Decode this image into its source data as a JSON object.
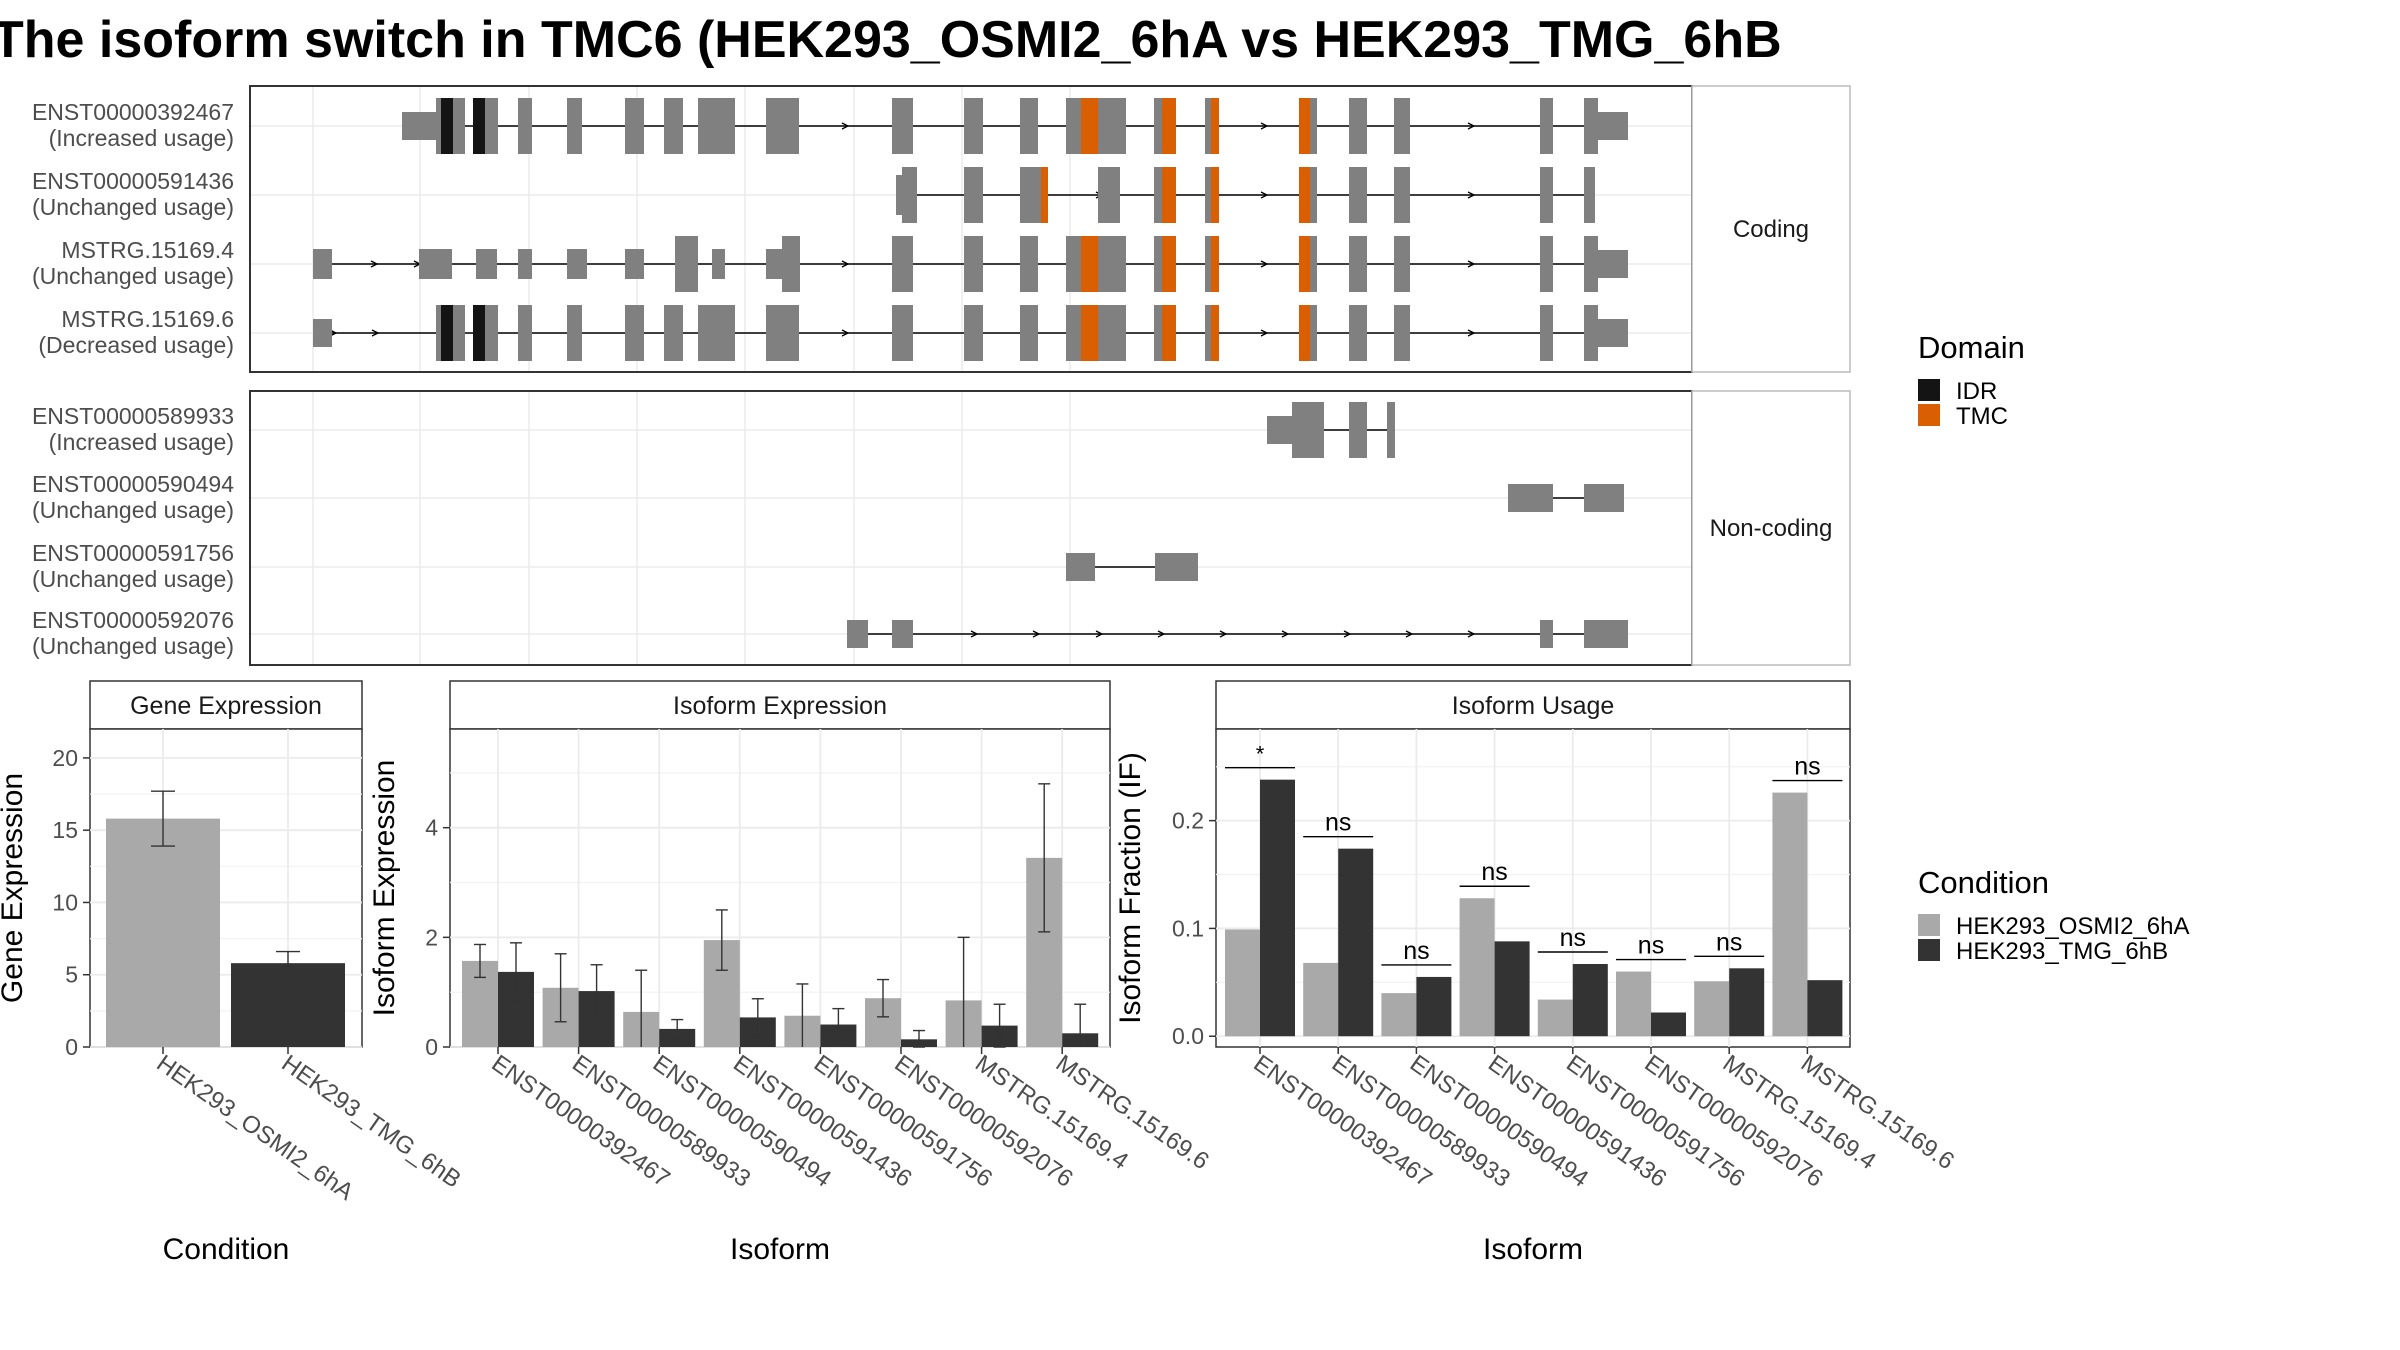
{
  "title": "The isoform switch in TMC6 (HEK293_OSMI2_6hA vs HEK293_TMG_6hB",
  "structure_panel": {
    "facets": [
      "Coding",
      "Non-coding"
    ],
    "transcripts": [
      {
        "id": "ENST00000392467",
        "usage": "(Increased usage)",
        "group": "Coding"
      },
      {
        "id": "ENST00000591436",
        "usage": "(Unchanged usage)",
        "group": "Coding"
      },
      {
        "id": "MSTRG.15169.4",
        "usage": "(Unchanged usage)",
        "group": "Coding"
      },
      {
        "id": "MSTRG.15169.6",
        "usage": "(Decreased usage)",
        "group": "Coding"
      },
      {
        "id": "ENST00000589933",
        "usage": "(Increased usage)",
        "group": "Non-coding"
      },
      {
        "id": "ENST00000590494",
        "usage": "(Unchanged usage)",
        "group": "Non-coding"
      },
      {
        "id": "ENST00000591756",
        "usage": "(Unchanged usage)",
        "group": "Non-coding"
      },
      {
        "id": "ENST00000592076",
        "usage": "(Unchanged usage)",
        "group": "Non-coding"
      }
    ],
    "domain_legend": {
      "title": "Domain",
      "items": [
        {
          "label": "IDR",
          "color": "#141414"
        },
        {
          "label": "TMC",
          "color": "#d95f02"
        }
      ]
    }
  },
  "condition_legend": {
    "title": "Condition",
    "items": [
      {
        "label": "HEK293_OSMI2_6hA",
        "color": "#a9a9a9"
      },
      {
        "label": "HEK293_TMG_6hB",
        "color": "#333333"
      }
    ]
  },
  "chart_data": [
    {
      "type": "bar",
      "title": "Gene Expression",
      "xlabel": "Condition",
      "ylabel": "Gene Expression",
      "categories": [
        "HEK293_OSMI2_6hA",
        "HEK293_TMG_6hB"
      ],
      "values": [
        15.8,
        5.8
      ],
      "error_low": [
        13.9,
        5.0
      ],
      "error_high": [
        17.7,
        6.6
      ],
      "ylim": [
        0,
        22
      ],
      "yticks": [
        0,
        5,
        10,
        15,
        20
      ]
    },
    {
      "type": "bar",
      "title": "Isoform Expression",
      "xlabel": "Isoform",
      "ylabel": "Isoform Expression",
      "categories": [
        "ENST00000392467",
        "ENST00000589933",
        "ENST00000590494",
        "ENST00000591436",
        "ENST00000591756",
        "ENST00000592076",
        "MSTRG.15169.4",
        "MSTRG.15169.6"
      ],
      "series": [
        {
          "name": "HEK293_OSMI2_6hA",
          "values": [
            1.57,
            1.08,
            0.64,
            1.95,
            0.57,
            0.89,
            0.85,
            3.45
          ],
          "error_low": [
            1.27,
            0.46,
            -0.13,
            1.4,
            -0.03,
            0.55,
            -0.35,
            2.1
          ],
          "error_high": [
            1.87,
            1.7,
            1.4,
            2.5,
            1.15,
            1.23,
            2.0,
            4.8
          ]
        },
        {
          "name": "HEK293_TMG_6hB",
          "values": [
            1.37,
            1.02,
            0.33,
            0.54,
            0.41,
            0.14,
            0.39,
            0.25
          ],
          "error_low": [
            0.85,
            0.5,
            0.15,
            0.2,
            0.13,
            0.0,
            0.0,
            -0.28
          ],
          "error_high": [
            1.9,
            1.5,
            0.5,
            0.88,
            0.7,
            0.3,
            0.78,
            0.78
          ]
        }
      ],
      "ylim": [
        0,
        5.8
      ],
      "yticks": [
        0,
        2,
        4
      ]
    },
    {
      "type": "bar",
      "title": "Isoform Usage",
      "xlabel": "Isoform",
      "ylabel": "Isoform Fraction (IF)",
      "categories": [
        "ENST00000392467",
        "ENST00000589933",
        "ENST00000590494",
        "ENST00000591436",
        "ENST00000591756",
        "ENST00000592076",
        "MSTRG.15169.4",
        "MSTRG.15169.6"
      ],
      "series": [
        {
          "name": "HEK293_OSMI2_6hA",
          "values": [
            0.099,
            0.068,
            0.04,
            0.128,
            0.034,
            0.06,
            0.051,
            0.226
          ]
        },
        {
          "name": "HEK293_TMG_6hB",
          "values": [
            0.238,
            0.174,
            0.055,
            0.088,
            0.067,
            0.022,
            0.063,
            0.052
          ]
        }
      ],
      "significance": [
        "*",
        "ns",
        "ns",
        "ns",
        "ns",
        "ns",
        "ns",
        "ns"
      ],
      "ylim": [
        -0.01,
        0.285
      ],
      "yticks": [
        0.0,
        0.1,
        0.2
      ],
      "ytick_labels": [
        "0.0",
        "0.1",
        "0.2"
      ]
    }
  ]
}
